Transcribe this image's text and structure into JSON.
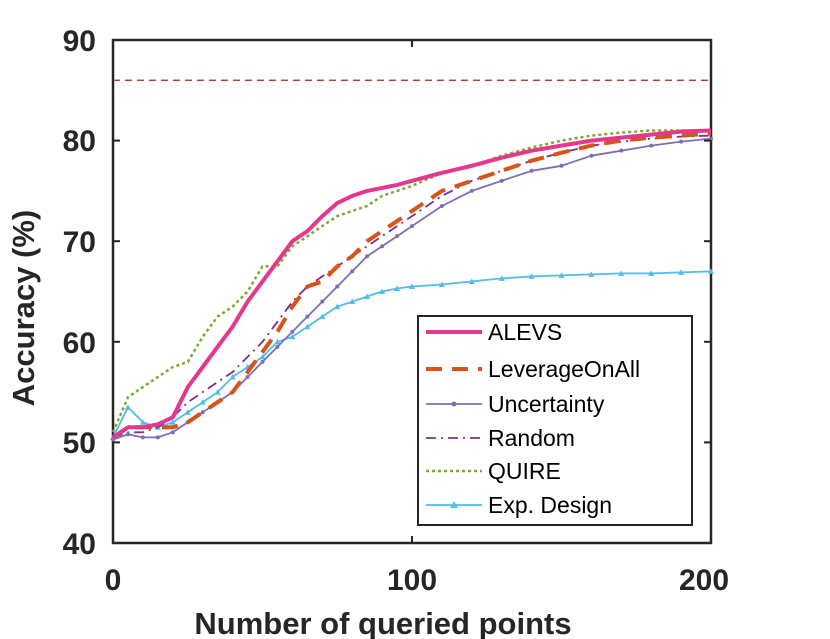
{
  "chart_data": {
    "type": "line",
    "title": "",
    "xlabel": "Number of queried points",
    "ylabel": "Accuracy (%)",
    "xlim": [
      0,
      200
    ],
    "ylim": [
      40,
      90
    ],
    "x_ticks": [
      0,
      100,
      200
    ],
    "y_ticks": [
      40,
      50,
      60,
      70,
      80,
      90
    ],
    "x_tick_labels": [
      "0",
      "100",
      "200"
    ],
    "y_tick_labels": [
      "40",
      "50",
      "60",
      "70",
      "80",
      "90"
    ],
    "grid": false,
    "legend_position": "bottom-right",
    "reference_line": {
      "y": 86,
      "color": "#b22222",
      "style": "dashed"
    },
    "series": [
      {
        "name": "ALEVS",
        "color": "#e6378c",
        "style": "solid",
        "marker": "none",
        "x": [
          0,
          5,
          10,
          15,
          20,
          25,
          30,
          35,
          40,
          45,
          50,
          55,
          60,
          65,
          70,
          75,
          80,
          85,
          90,
          95,
          100,
          110,
          120,
          130,
          140,
          150,
          160,
          170,
          180,
          190,
          200
        ],
        "y": [
          50.5,
          51.5,
          51.5,
          51.8,
          52.5,
          55.5,
          57.5,
          59.5,
          61.5,
          64.0,
          66.0,
          68.0,
          70.0,
          71.0,
          72.5,
          73.8,
          74.5,
          75.0,
          75.3,
          75.6,
          76.0,
          76.8,
          77.5,
          78.3,
          79.0,
          79.5,
          80.0,
          80.3,
          80.6,
          80.9,
          81.0
        ]
      },
      {
        "name": "LeverageOnAll",
        "color": "#d95319",
        "style": "dashed",
        "marker": "none",
        "x": [
          0,
          5,
          10,
          15,
          20,
          25,
          30,
          35,
          40,
          45,
          50,
          55,
          60,
          65,
          70,
          75,
          80,
          85,
          90,
          95,
          100,
          110,
          120,
          130,
          140,
          150,
          160,
          170,
          180,
          190,
          200
        ],
        "y": [
          50.5,
          51.5,
          51.5,
          51.5,
          51.5,
          52.0,
          53.0,
          54.0,
          55.0,
          57.0,
          59.0,
          61.0,
          63.5,
          65.5,
          66.0,
          67.5,
          68.5,
          70.0,
          71.0,
          72.0,
          73.0,
          75.0,
          76.0,
          77.0,
          78.0,
          78.8,
          79.5,
          80.0,
          80.3,
          80.5,
          80.7
        ]
      },
      {
        "name": "Uncertainty",
        "color": "#7e6eba",
        "style": "solid",
        "marker": "dot",
        "x": [
          0,
          5,
          10,
          15,
          20,
          25,
          30,
          35,
          40,
          45,
          50,
          55,
          60,
          65,
          70,
          75,
          80,
          85,
          90,
          95,
          100,
          110,
          120,
          130,
          140,
          150,
          160,
          170,
          180,
          190,
          200
        ],
        "y": [
          50.3,
          50.8,
          50.5,
          50.5,
          51.0,
          52.0,
          53.0,
          54.0,
          55.0,
          56.5,
          58.0,
          59.5,
          61.0,
          62.5,
          64.0,
          65.5,
          67.0,
          68.5,
          69.5,
          70.5,
          71.5,
          73.5,
          75.0,
          76.0,
          77.0,
          77.5,
          78.5,
          79.0,
          79.5,
          79.9,
          80.2
        ]
      },
      {
        "name": "Random",
        "color": "#7e2f8e",
        "style": "dashdot",
        "marker": "none",
        "x": [
          0,
          5,
          10,
          15,
          20,
          25,
          30,
          35,
          40,
          45,
          50,
          55,
          60,
          65,
          70,
          75,
          80,
          85,
          90,
          95,
          100,
          110,
          120,
          130,
          140,
          150,
          160,
          170,
          180,
          190,
          200
        ],
        "y": [
          50.5,
          51.0,
          51.0,
          51.5,
          52.5,
          54.0,
          55.0,
          56.0,
          57.0,
          58.5,
          60.0,
          62.0,
          64.0,
          65.5,
          66.5,
          67.5,
          68.5,
          69.5,
          70.5,
          71.5,
          72.5,
          74.5,
          76.0,
          77.0,
          78.0,
          78.8,
          79.5,
          79.9,
          80.2,
          80.4,
          80.5
        ]
      },
      {
        "name": "QUIRE",
        "color": "#77ac30",
        "style": "dotted",
        "marker": "none",
        "x": [
          0,
          5,
          10,
          15,
          20,
          25,
          30,
          35,
          40,
          45,
          50,
          55,
          60,
          65,
          70,
          75,
          80,
          85,
          90,
          95,
          100,
          110,
          120,
          130,
          140,
          150,
          160,
          170,
          180,
          190,
          200
        ],
        "y": [
          51.0,
          54.5,
          55.5,
          56.5,
          57.5,
          58.0,
          60.5,
          62.5,
          63.5,
          65.0,
          67.5,
          67.5,
          69.5,
          70.5,
          71.5,
          72.5,
          73.0,
          73.5,
          74.5,
          75.0,
          75.5,
          76.8,
          77.5,
          78.5,
          79.3,
          80.0,
          80.5,
          80.8,
          81.0,
          81.0,
          81.0
        ]
      },
      {
        "name": "Exp. Design",
        "color": "#4dbeee",
        "style": "solid",
        "marker": "triangle",
        "x": [
          0,
          5,
          10,
          15,
          20,
          25,
          30,
          35,
          40,
          45,
          50,
          55,
          60,
          65,
          70,
          75,
          80,
          85,
          90,
          95,
          100,
          110,
          120,
          130,
          140,
          150,
          160,
          170,
          180,
          190,
          200
        ],
        "y": [
          50.5,
          53.5,
          52.0,
          51.5,
          52.0,
          53.0,
          54.0,
          55.0,
          56.5,
          57.5,
          58.5,
          60.0,
          60.5,
          61.5,
          62.5,
          63.5,
          64.0,
          64.5,
          65.0,
          65.3,
          65.5,
          65.7,
          66.0,
          66.3,
          66.5,
          66.6,
          66.7,
          66.8,
          66.8,
          66.9,
          67.0
        ]
      }
    ]
  }
}
